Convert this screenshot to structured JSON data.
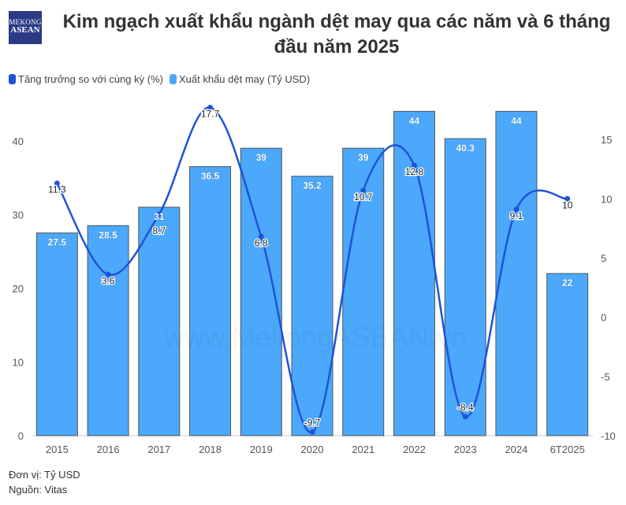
{
  "logo_text": "MEKONG ASEAN",
  "watermark": "www.MekongASEAN.vn",
  "footer": {
    "unit": "Đơn vị: Tỷ USD",
    "source": "Nguồn: Vitas"
  },
  "colors": {
    "bar": "#4ba8fb",
    "line": "#1f54d6"
  },
  "chart_data": {
    "type": "bar+line",
    "title": "Kim ngạch xuất khẩu ngành dệt may qua các năm và 6 tháng đầu năm 2025",
    "categories": [
      "2015",
      "2016",
      "2017",
      "2018",
      "2019",
      "2020",
      "2021",
      "2022",
      "2023",
      "2024",
      "6T2025"
    ],
    "series": [
      {
        "name": "Tăng trưởng so với cùng kỳ (%)",
        "type": "line",
        "axis": "right",
        "values": [
          11.3,
          3.6,
          8.7,
          17.7,
          6.8,
          -9.7,
          10.7,
          12.8,
          -8.4,
          9.1,
          10
        ]
      },
      {
        "name": "Xuất khẩu dệt may (Tỷ USD)",
        "type": "bar",
        "axis": "left",
        "values": [
          27.5,
          28.5,
          31,
          36.5,
          39,
          35.2,
          39,
          44,
          40.3,
          44,
          22
        ]
      }
    ],
    "left_axis": {
      "ticks": [
        0,
        10,
        20,
        30,
        40
      ],
      "range": [
        0,
        45
      ]
    },
    "right_axis": {
      "ticks": [
        -10,
        -5,
        0,
        5,
        10,
        15
      ],
      "range": [
        -10,
        18
      ]
    },
    "legend": "top-left"
  }
}
